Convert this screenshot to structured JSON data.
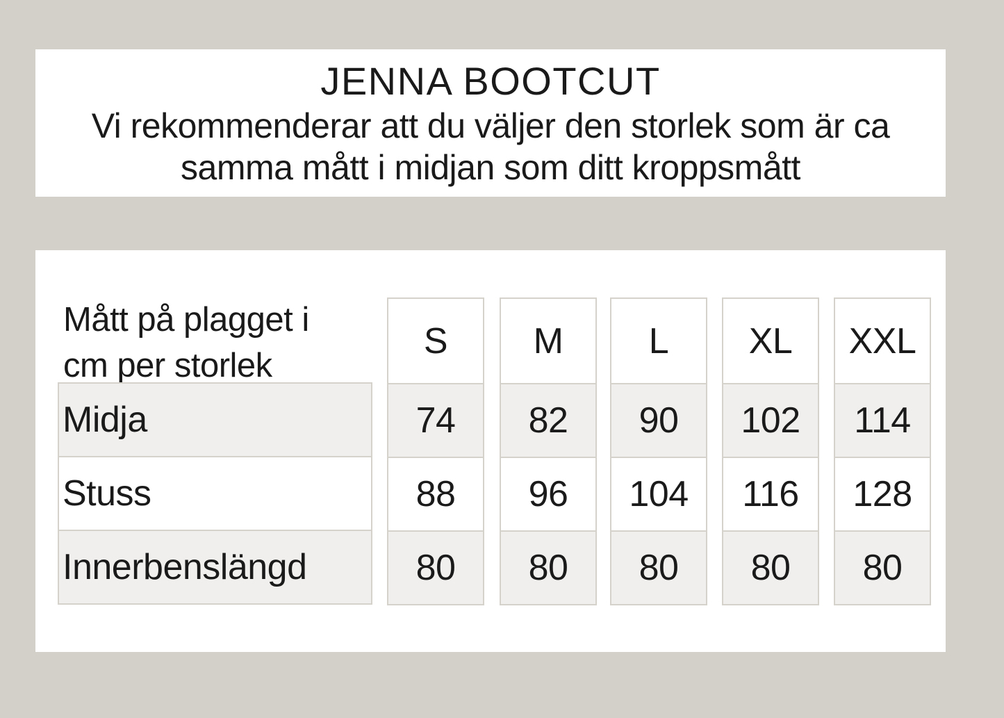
{
  "header": {
    "title": "JENNA BOOTCUT",
    "recommendation_line1": "Vi rekommenderar att du väljer den storlek som är ca",
    "recommendation_line2": "samma mått i midjan som ditt kroppsmått"
  },
  "table": {
    "corner_line1": "Mått på plagget i",
    "corner_line2": "cm per storlek",
    "sizes": [
      "S",
      "M",
      "L",
      "XL",
      "XXL"
    ],
    "rows": [
      {
        "label": "Midja",
        "values": [
          "74",
          "82",
          "90",
          "102",
          "114"
        ]
      },
      {
        "label": "Stuss",
        "values": [
          "88",
          "96",
          "104",
          "116",
          "128"
        ]
      },
      {
        "label": "Innerbenslängd",
        "values": [
          "80",
          "80",
          "80",
          "80",
          "80"
        ]
      }
    ]
  },
  "colors": {
    "page_background": "#d3d0c9",
    "panel_background": "#ffffff",
    "stripe": "#f0efed",
    "cell_border": "#d5d2cb",
    "text": "#1a1a1a"
  }
}
